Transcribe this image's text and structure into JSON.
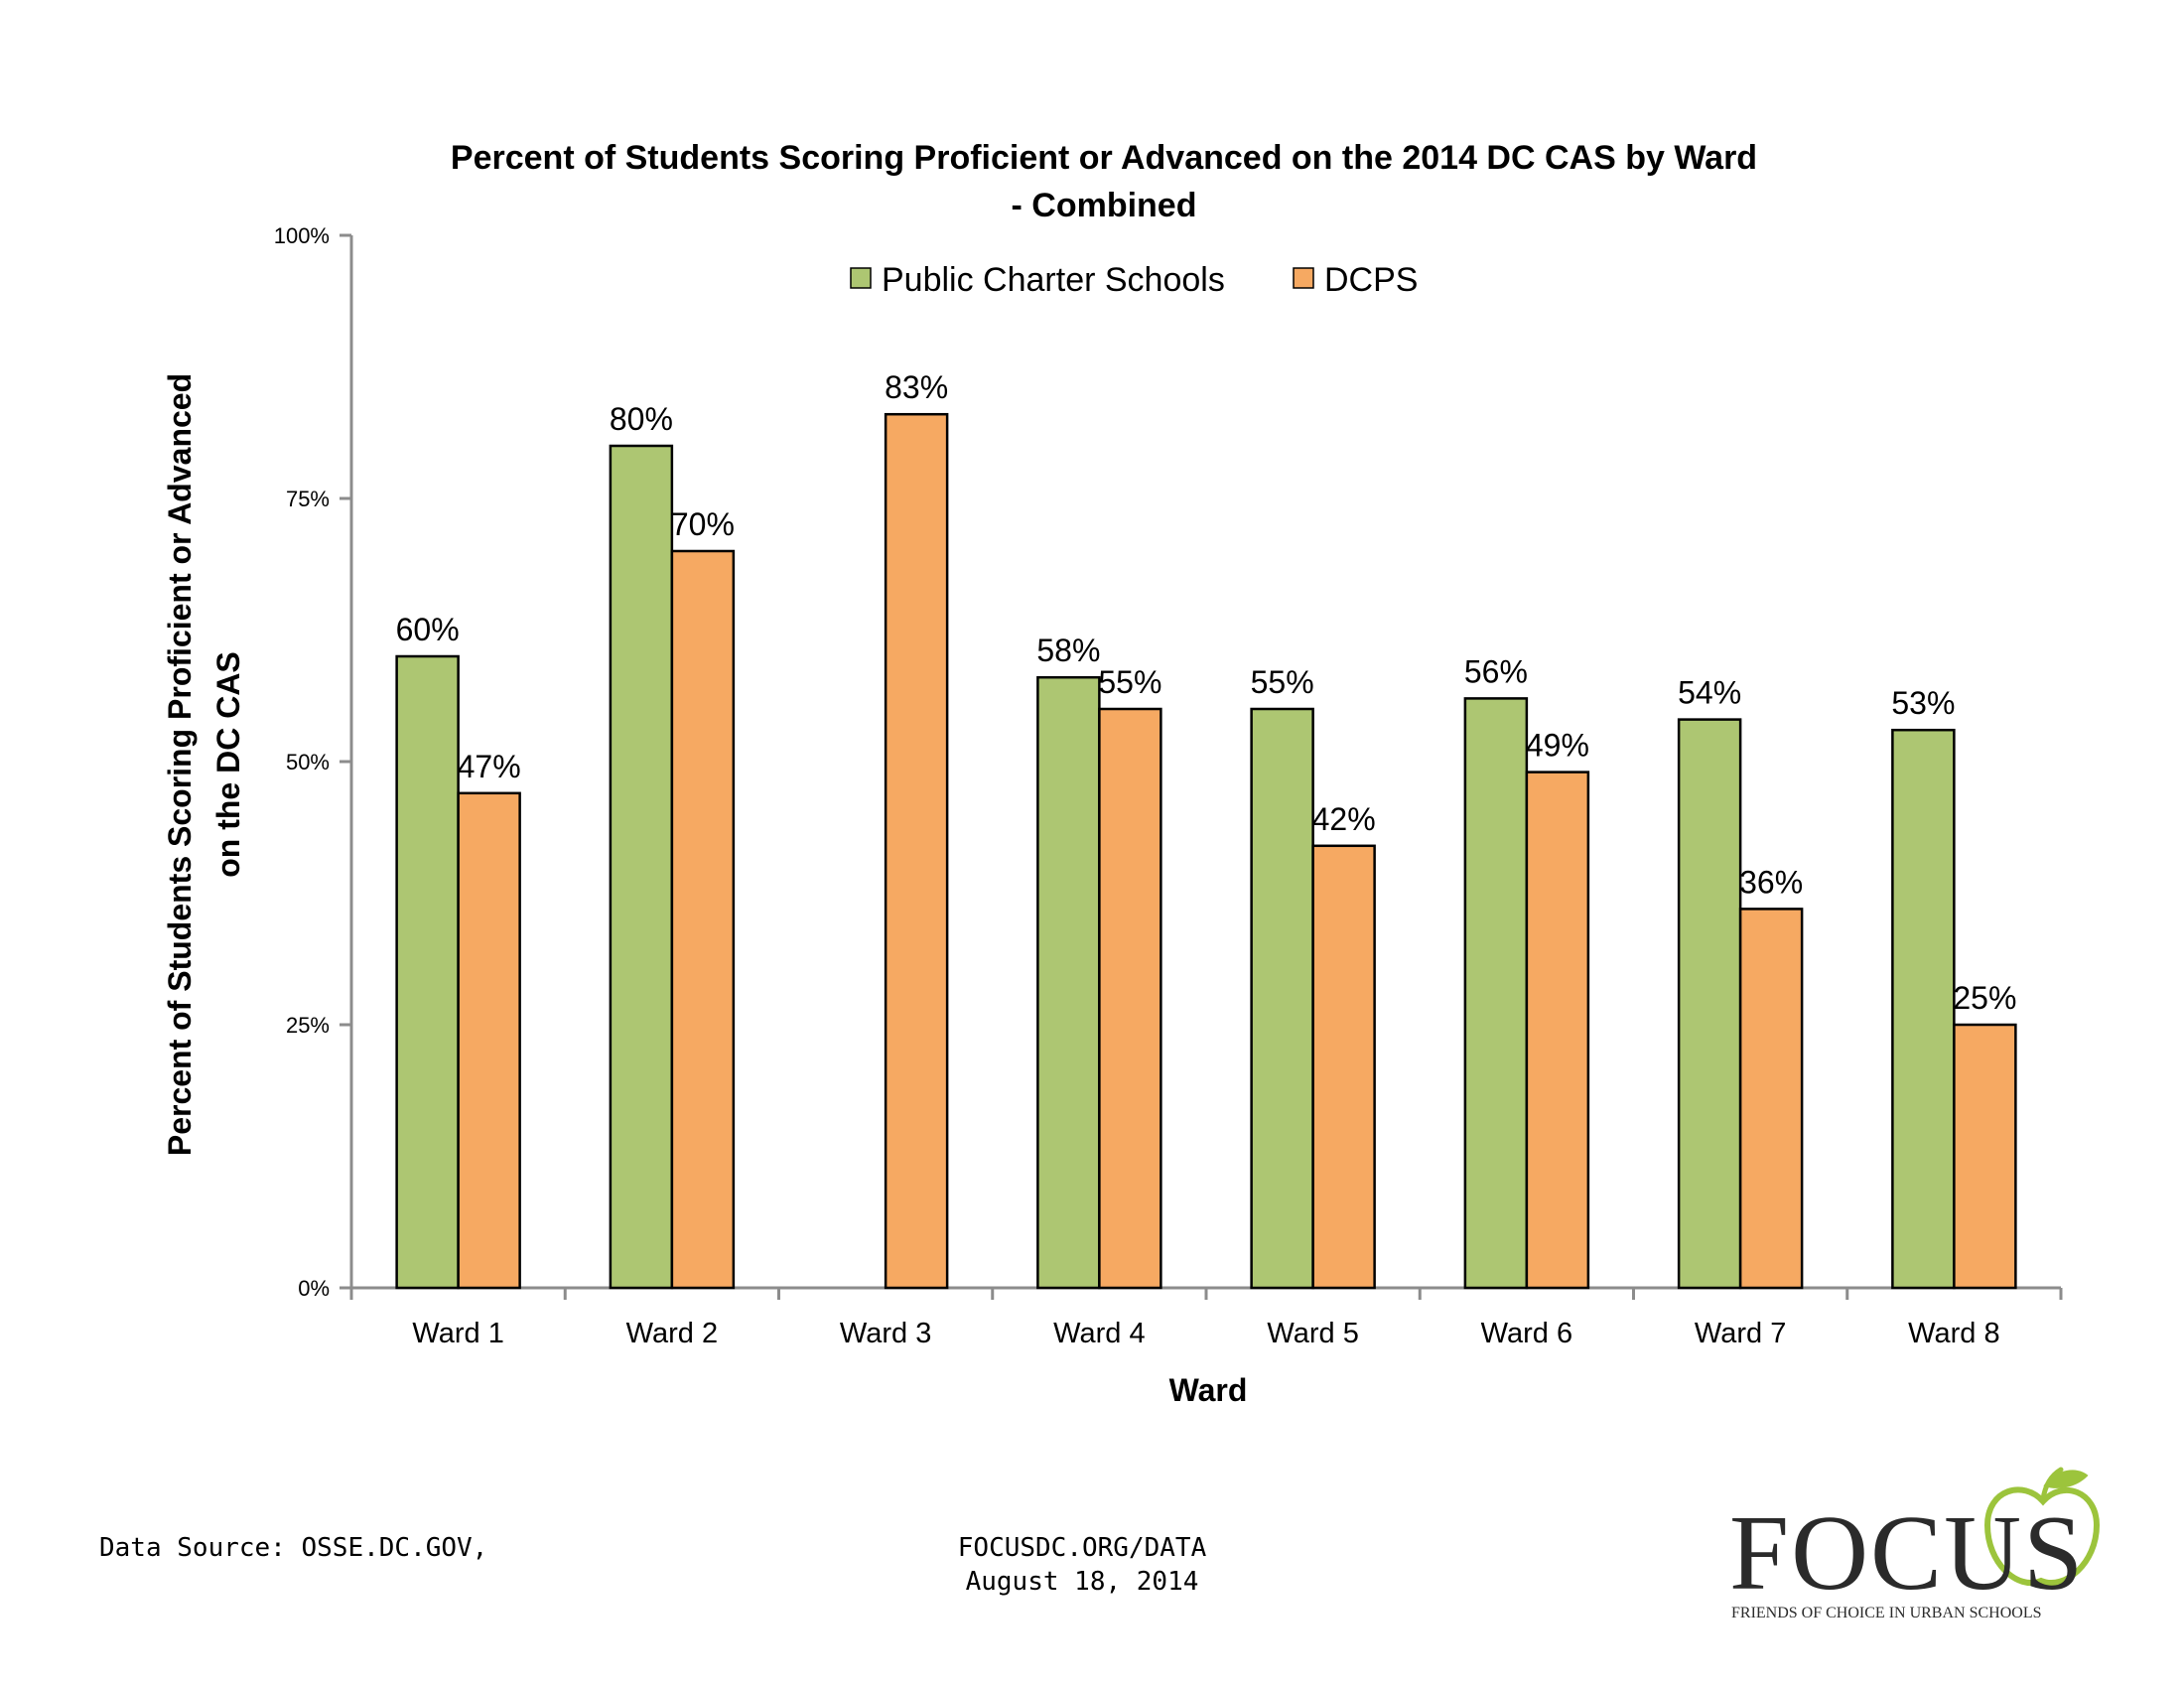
{
  "chart_data": {
    "type": "bar",
    "title_line1": "Percent of Students Scoring Proficient or Advanced on the 2014 DC CAS by Ward",
    "title_line2": "- Combined",
    "xlabel": "Ward",
    "ylabel_line1": "Percent of Students Scoring Proficient or Advanced",
    "ylabel_line2": "on the DC CAS",
    "ylim": [
      0,
      100
    ],
    "y_ticks": [
      0,
      25,
      50,
      75,
      100
    ],
    "y_tick_labels": [
      "0%",
      "25%",
      "50%",
      "75%",
      "100%"
    ],
    "legend_position": "top-center",
    "grid": false,
    "categories": [
      "Ward 1",
      "Ward 2",
      "Ward 3",
      "Ward 4",
      "Ward 5",
      "Ward 6",
      "Ward 7",
      "Ward 8"
    ],
    "series": [
      {
        "name": "Public Charter Schools",
        "color": "#adc672",
        "values": [
          60,
          80,
          null,
          58,
          55,
          56,
          54,
          53
        ],
        "labels": [
          "60%",
          "80%",
          "",
          "58%",
          "55%",
          "56%",
          "54%",
          "53%"
        ]
      },
      {
        "name": "DCPS",
        "color": "#f6a962",
        "values": [
          47,
          70,
          83,
          55,
          42,
          49,
          36,
          25
        ],
        "labels": [
          "47%",
          "70%",
          "83%",
          "55%",
          "42%",
          "49%",
          "36%",
          "25%"
        ]
      }
    ]
  },
  "footer": {
    "source": "Data Source: OSSE.DC.GOV,",
    "site": "FOCUSDC.ORG/DATA",
    "date": "August 18, 2014"
  },
  "logo": {
    "word": "FOCUS",
    "tagline": "FRIENDS OF CHOICE IN URBAN SCHOOLS",
    "apple_color": "#9cc43c"
  }
}
